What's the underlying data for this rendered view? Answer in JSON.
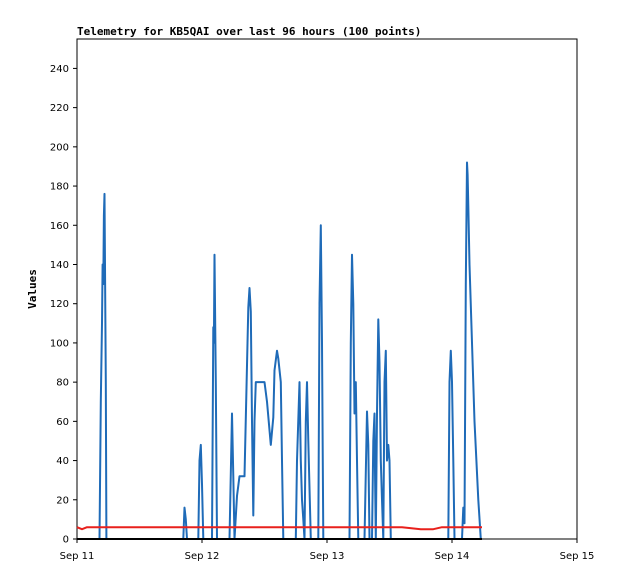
{
  "chart_data": {
    "type": "line",
    "title": "Telemetry for KB5QAI over last 96 hours (100 points)",
    "xlabel": "",
    "ylabel": "Values",
    "x_ticks": [
      "Sep 11",
      "Sep 12",
      "Sep 13",
      "Sep 14",
      "Sep 15"
    ],
    "xlim": [
      0,
      4
    ],
    "y_ticks": [
      0,
      20,
      40,
      60,
      80,
      100,
      120,
      140,
      160,
      180,
      200,
      220,
      240
    ],
    "ylim": [
      0,
      255
    ],
    "grid": false,
    "legend": "none",
    "series": [
      {
        "color": "#1f6bb8",
        "points": [
          [
            0.18,
            0
          ],
          [
            0.19,
            70
          ],
          [
            0.2,
            110
          ],
          [
            0.205,
            140
          ],
          [
            0.21,
            130
          ],
          [
            0.215,
            165
          ],
          [
            0.22,
            176
          ],
          [
            0.23,
            80
          ],
          [
            0.235,
            0
          ],
          [
            0.85,
            0
          ],
          [
            0.86,
            16
          ],
          [
            0.87,
            10
          ],
          [
            0.88,
            0
          ],
          [
            0.97,
            0
          ],
          [
            0.98,
            40
          ],
          [
            0.99,
            48
          ],
          [
            1.0,
            28
          ],
          [
            1.01,
            0
          ],
          [
            1.08,
            0
          ],
          [
            1.09,
            108
          ],
          [
            1.095,
            100
          ],
          [
            1.1,
            145
          ],
          [
            1.11,
            80
          ],
          [
            1.12,
            0
          ],
          [
            1.22,
            0
          ],
          [
            1.24,
            64
          ],
          [
            1.25,
            32
          ],
          [
            1.26,
            0
          ],
          [
            1.28,
            22
          ],
          [
            1.3,
            32
          ],
          [
            1.34,
            32
          ],
          [
            1.37,
            118
          ],
          [
            1.38,
            128
          ],
          [
            1.39,
            116
          ],
          [
            1.4,
            60
          ],
          [
            1.41,
            12
          ],
          [
            1.42,
            60
          ],
          [
            1.43,
            80
          ],
          [
            1.5,
            80
          ],
          [
            1.52,
            70
          ],
          [
            1.55,
            48
          ],
          [
            1.57,
            62
          ],
          [
            1.58,
            86
          ],
          [
            1.6,
            96
          ],
          [
            1.61,
            92
          ],
          [
            1.63,
            80
          ],
          [
            1.64,
            40
          ],
          [
            1.65,
            0
          ],
          [
            1.75,
            0
          ],
          [
            1.76,
            40
          ],
          [
            1.78,
            80
          ],
          [
            1.79,
            40
          ],
          [
            1.8,
            20
          ],
          [
            1.81,
            10
          ],
          [
            1.82,
            0
          ],
          [
            1.83,
            60
          ],
          [
            1.84,
            80
          ],
          [
            1.85,
            50
          ],
          [
            1.87,
            0
          ],
          [
            1.93,
            0
          ],
          [
            1.94,
            120
          ],
          [
            1.95,
            160
          ],
          [
            1.96,
            100
          ],
          [
            1.97,
            0
          ],
          [
            2.18,
            0
          ],
          [
            2.19,
            100
          ],
          [
            2.2,
            145
          ],
          [
            2.21,
            120
          ],
          [
            2.22,
            64
          ],
          [
            2.23,
            80
          ],
          [
            2.24,
            40
          ],
          [
            2.25,
            0
          ],
          [
            2.3,
            0
          ],
          [
            2.32,
            65
          ],
          [
            2.33,
            48
          ],
          [
            2.34,
            0
          ],
          [
            2.36,
            0
          ],
          [
            2.37,
            50
          ],
          [
            2.38,
            64
          ],
          [
            2.385,
            30
          ],
          [
            2.39,
            0
          ],
          [
            2.4,
            64
          ],
          [
            2.41,
            112
          ],
          [
            2.42,
            90
          ],
          [
            2.43,
            40
          ],
          [
            2.44,
            20
          ],
          [
            2.45,
            0
          ],
          [
            2.46,
            80
          ],
          [
            2.47,
            96
          ],
          [
            2.48,
            40
          ],
          [
            2.49,
            48
          ],
          [
            2.5,
            40
          ],
          [
            2.51,
            0
          ],
          [
            2.97,
            0
          ],
          [
            2.98,
            80
          ],
          [
            2.99,
            96
          ],
          [
            3.0,
            80
          ],
          [
            3.01,
            40
          ],
          [
            3.02,
            0
          ],
          [
            3.08,
            0
          ],
          [
            3.09,
            16
          ],
          [
            3.1,
            8
          ],
          [
            3.11,
            130
          ],
          [
            3.12,
            192
          ],
          [
            3.125,
            186
          ],
          [
            3.13,
            170
          ],
          [
            3.14,
            140
          ],
          [
            3.16,
            100
          ],
          [
            3.18,
            60
          ],
          [
            3.21,
            20
          ],
          [
            3.23,
            0
          ]
        ]
      },
      {
        "color": "#e8201c",
        "points": [
          [
            0.0,
            6
          ],
          [
            0.04,
            5
          ],
          [
            0.08,
            6
          ],
          [
            0.12,
            6
          ],
          [
            2.0,
            6
          ],
          [
            2.6,
            6
          ],
          [
            2.75,
            5
          ],
          [
            2.85,
            5
          ],
          [
            2.92,
            6
          ],
          [
            3.24,
            6
          ]
        ]
      },
      {
        "color": "#000000",
        "points": [
          [
            0.0,
            0
          ],
          [
            3.24,
            0
          ]
        ]
      }
    ]
  }
}
